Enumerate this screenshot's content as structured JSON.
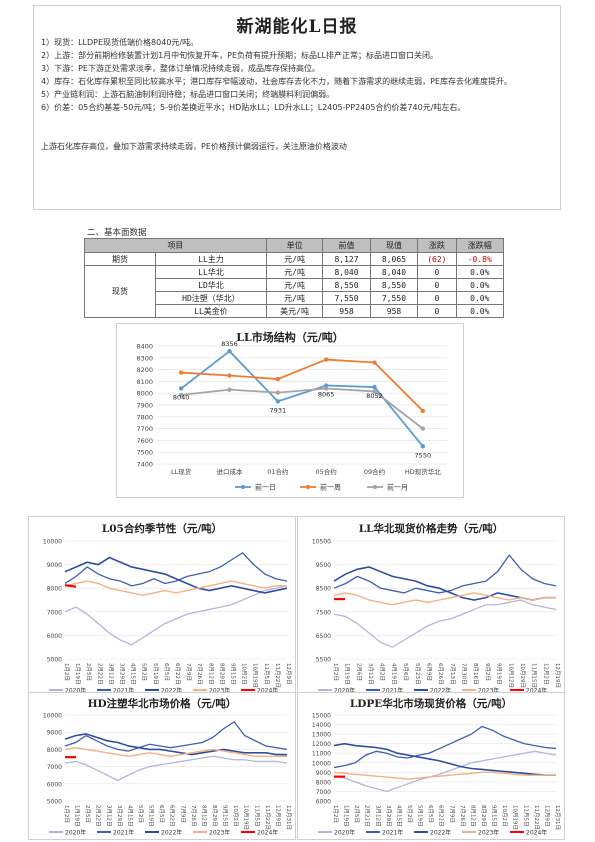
{
  "report": {
    "title": "新湖能化L日报",
    "lines": [
      "1）现货：LLDPE现货低端价格8040元/吨。",
      "2）上游：部分前期检修装置计划1月中旬恢复开车，PE负荷有提升预期；标品LL排产正常；标品进口窗口关闭。",
      "3）下游：PE下游正处需求淡季，整体订单情况持续走弱，成品库存保持高位。",
      "4）库存：石化库存累积至同比较高水平；港口库存窄幅波动，社会库存去化不力，随着下游需求的继续走弱，PE库存去化难度提升。",
      "5）产业链利润：上游石脑油制利润持稳；标品进口窗口关闭；终端膜料利润偏弱。",
      "6）价差：05合约基差-50元/吨；5-9价差换近平水；HD贴水LL；LD升水LL；L2405-PP2405合约价差740元/吨左右。"
    ],
    "conclusion": "上游石化库存高位，叠加下游需求持续走弱，PE价格预计偏弱运行，关注原油价格波动"
  },
  "section": {
    "title": "二、基本面数据"
  },
  "table": {
    "headers": [
      "项目",
      "单位",
      "前值",
      "现值",
      "涨跌",
      "涨跌幅"
    ],
    "group_futures": "期货",
    "group_spot": "现货",
    "rows": [
      {
        "item": "LL主力",
        "unit": "元/吨",
        "prev": "8,127",
        "curr": "8,065",
        "chg": "(62)",
        "pct": "-0.8%"
      },
      {
        "item": "LL华北",
        "unit": "元/吨",
        "prev": "8,040",
        "curr": "8,040",
        "chg": "0",
        "pct": "0.0%"
      },
      {
        "item": "LD华北",
        "unit": "元/吨",
        "prev": "8,550",
        "curr": "8,550",
        "chg": "0",
        "pct": "0.0%"
      },
      {
        "item": "HD注塑（华北）",
        "unit": "元/吨",
        "prev": "7,550",
        "curr": "7,550",
        "chg": "0",
        "pct": "0.0%"
      },
      {
        "item": "LL美金价",
        "unit": "美元/吨",
        "prev": "958",
        "curr": "958",
        "chg": "0",
        "pct": "0.0%"
      }
    ]
  },
  "colors": {
    "blue": "#5b9bd5",
    "orange": "#ed7d31",
    "gray": "#a5a5a5",
    "lav": "#b4b4dc",
    "navy": "#3f5fb0",
    "dark": "#2e4fa0",
    "peach": "#f4b183",
    "red": "#ff0000"
  },
  "chart_data": [
    {
      "type": "line",
      "title": "LL市场结构（元/吨）",
      "categories": [
        "LL现货",
        "进口成本",
        "01合约",
        "05合约",
        "09合约",
        "HD现货华北"
      ],
      "ylim": [
        7400,
        8400
      ],
      "yticks": [
        "8400",
        "8300",
        "8200",
        "8100",
        "8000",
        "7900",
        "7800",
        "7700",
        "7600",
        "7500",
        "7400"
      ],
      "series": [
        {
          "name": "前一日",
          "values": [
            8040,
            8356,
            7931,
            8065,
            8052,
            7550
          ]
        },
        {
          "name": "前一周",
          "values": [
            8175,
            8150,
            8120,
            8285,
            8260,
            7850
          ]
        },
        {
          "name": "前一月",
          "values": [
            7985,
            8030,
            8005,
            8040,
            8015,
            7700
          ]
        }
      ],
      "data_labels": [
        {
          "text": "8040",
          "series": 0,
          "index": 0
        },
        {
          "text": "8356",
          "series": 0,
          "index": 1
        },
        {
          "text": "7931",
          "series": 0,
          "index": 2
        },
        {
          "text": "8065",
          "series": 0,
          "index": 3
        },
        {
          "text": "8052",
          "series": 0,
          "index": 4
        },
        {
          "text": "7550",
          "series": 0,
          "index": 5
        }
      ]
    },
    {
      "type": "line",
      "title": "L05合约季节性（元/吨）",
      "ylim": [
        5000,
        10000
      ],
      "yticks": [
        "10000",
        "9000",
        "8000",
        "7000",
        "6000",
        "5000"
      ],
      "xticks": [
        "1月2日",
        "1月19日",
        "2月5日",
        "2月22日",
        "3月12日",
        "3月29日",
        "4月15日",
        "5月2日",
        "5月19日",
        "6月5日",
        "6月22日",
        "7月9日",
        "7月26日",
        "8月12日",
        "8月29日",
        "9月15日",
        "10月2日",
        "10月19日",
        "11月5日",
        "11月22日",
        "12月9日"
      ],
      "legend": [
        "2020年",
        "2021年",
        "2022年",
        "2023年",
        "2024年"
      ],
      "series": [
        {
          "name": "2020年",
          "values": [
            7000,
            7200,
            6900,
            6500,
            6100,
            5800,
            5600,
            5900,
            6200,
            6500,
            6700,
            6900,
            7000,
            7100,
            7200,
            7300,
            7500,
            7700,
            7900,
            8000,
            8100
          ]
        },
        {
          "name": "2021年",
          "values": [
            8200,
            8500,
            8900,
            8600,
            8400,
            8300,
            8100,
            8200,
            8400,
            8200,
            8300,
            8500,
            8600,
            8700,
            8900,
            9200,
            9500,
            9000,
            8600,
            8400,
            8300
          ]
        },
        {
          "name": "2022年",
          "values": [
            8700,
            8900,
            9100,
            9000,
            9300,
            9100,
            8900,
            8800,
            8700,
            8600,
            8400,
            8200,
            8000,
            7900,
            8000,
            8100,
            8000,
            7900,
            7800,
            7900,
            8000
          ]
        },
        {
          "name": "2023年",
          "values": [
            8100,
            8200,
            8300,
            8200,
            8000,
            7900,
            7800,
            7700,
            7800,
            7900,
            7800,
            7900,
            8000,
            8100,
            8200,
            8300,
            8200,
            8100,
            8000,
            8100,
            8100
          ]
        },
        {
          "name": "2024年",
          "values": [
            8127,
            8065
          ]
        }
      ]
    },
    {
      "type": "line",
      "title": "LL华北现货价格走势（元/吨）",
      "ylim": [
        5500,
        10500
      ],
      "yticks": [
        "10500",
        "9500",
        "8500",
        "7500",
        "6500",
        "5500"
      ],
      "xticks": [
        "1月2日",
        "1月19日",
        "2月6日",
        "3月12日",
        "4月2日",
        "4月19日",
        "5月6日",
        "5月23日",
        "6月9日",
        "6月26日",
        "7月13日",
        "7月30日",
        "8月16日",
        "9月2日",
        "9月19日",
        "10月12日",
        "10月29日",
        "11月15日",
        "12月2日",
        "12月19日"
      ],
      "legend": [
        "2020年",
        "2021年",
        "2022年",
        "2023年",
        "2024年"
      ],
      "series": [
        {
          "name": "2020年",
          "values": [
            7400,
            7300,
            7000,
            6600,
            6200,
            6000,
            6300,
            6600,
            6900,
            7100,
            7200,
            7400,
            7600,
            7800,
            7800,
            7900,
            8000,
            7800,
            7700,
            7600
          ]
        },
        {
          "name": "2021年",
          "values": [
            8500,
            8700,
            9000,
            8800,
            8500,
            8400,
            8300,
            8500,
            8400,
            8300,
            8400,
            8600,
            8700,
            8800,
            9200,
            9900,
            9300,
            8900,
            8700,
            8600
          ]
        },
        {
          "name": "2022年",
          "values": [
            8800,
            9100,
            9300,
            9400,
            9200,
            9000,
            8900,
            8800,
            8600,
            8500,
            8300,
            8100,
            8000,
            8100,
            8300,
            8200,
            8100,
            8000,
            8100,
            8100
          ]
        },
        {
          "name": "2023年",
          "values": [
            8200,
            8300,
            8200,
            8000,
            7900,
            7800,
            7900,
            8000,
            7900,
            8000,
            8100,
            8200,
            8300,
            8200,
            8100,
            8000,
            8100,
            8000,
            8100,
            8100
          ]
        },
        {
          "name": "2024年",
          "values": [
            8040,
            8040
          ]
        }
      ]
    },
    {
      "type": "line",
      "title": "HD注塑华北市场价格（元/吨）",
      "ylim": [
        5000,
        10000
      ],
      "yticks": [
        "10000",
        "9000",
        "8000",
        "7000",
        "6000",
        "5000"
      ],
      "xticks": [
        "1月2日",
        "1月19日",
        "2月5日",
        "2月22日",
        "3月12日",
        "3月29日",
        "4月15日",
        "5月2日",
        "5月19日",
        "6月5日",
        "6月22日",
        "7月9日",
        "7月26日",
        "8月12日",
        "8月29日",
        "9月15日",
        "10月2日",
        "10月19日",
        "11月5日",
        "11月22日",
        "12月9日",
        "12月31日"
      ],
      "legend": [
        "2020年",
        "2021年",
        "2022年",
        "2023年",
        "2024年"
      ],
      "series": [
        {
          "name": "2020年",
          "values": [
            7200,
            7300,
            7100,
            6800,
            6500,
            6200,
            6500,
            6800,
            7000,
            7100,
            7200,
            7300,
            7400,
            7500,
            7600,
            7500,
            7400,
            7400,
            7300,
            7300,
            7300,
            7200
          ]
        },
        {
          "name": "2021年",
          "values": [
            8200,
            8400,
            8800,
            8500,
            8200,
            8000,
            7900,
            8100,
            8300,
            8200,
            8100,
            8200,
            8300,
            8400,
            8700,
            9200,
            9600,
            8800,
            8500,
            8200,
            8100,
            8000
          ]
        },
        {
          "name": "2022年",
          "values": [
            8600,
            8800,
            8900,
            8700,
            8500,
            8400,
            8200,
            8100,
            8000,
            8000,
            7900,
            7800,
            7700,
            7800,
            7900,
            8000,
            7900,
            7800,
            7800,
            7800,
            7700,
            7700
          ]
        },
        {
          "name": "2023年",
          "values": [
            8000,
            8100,
            8000,
            7900,
            7800,
            7700,
            7600,
            7700,
            7800,
            7700,
            7600,
            7700,
            7800,
            7900,
            8000,
            7900,
            7800,
            7700,
            7600,
            7600,
            7600,
            7600
          ]
        },
        {
          "name": "2024年",
          "values": [
            7550,
            7550
          ]
        }
      ]
    },
    {
      "type": "line",
      "title": "LDPE华北市场现货价格（元/吨）",
      "ylim": [
        6000,
        15000
      ],
      "yticks": [
        "15000",
        "14000",
        "13000",
        "12000",
        "11000",
        "10000",
        "9000",
        "8000",
        "7000",
        "6000"
      ],
      "xticks": [
        "1月2日",
        "1月19日",
        "2月5日",
        "2月22日",
        "3月12日",
        "3月29日",
        "4月15日",
        "5月2日",
        "5月19日",
        "6月5日",
        "6月22日",
        "7月9日",
        "7月26日",
        "8月12日",
        "8月29日",
        "9月15日",
        "10月2日",
        "10月19日",
        "11月5日",
        "11月22日",
        "12月9日",
        "12月31日"
      ],
      "legend": [
        "2020年",
        "2021年",
        "2022年",
        "2023年",
        "2024年"
      ],
      "series": [
        {
          "name": "2020年",
          "values": [
            8600,
            8400,
            8000,
            7600,
            7300,
            7000,
            7400,
            7800,
            8200,
            8500,
            8800,
            9200,
            9600,
            10000,
            10200,
            10400,
            10600,
            10800,
            11000,
            11200,
            11000,
            10800
          ]
        },
        {
          "name": "2021年",
          "values": [
            9500,
            9700,
            10000,
            10800,
            11200,
            11000,
            10600,
            10500,
            10800,
            11000,
            11500,
            12000,
            12500,
            13000,
            13800,
            13400,
            12800,
            12400,
            12000,
            11800,
            11600,
            11500
          ]
        },
        {
          "name": "2022年",
          "values": [
            11800,
            12000,
            11800,
            11700,
            11600,
            11400,
            11000,
            10800,
            10600,
            10400,
            10200,
            9900,
            9600,
            9400,
            9300,
            9200,
            9100,
            9000,
            8900,
            8800,
            8700,
            8700
          ]
        },
        {
          "name": "2023年",
          "values": [
            9000,
            8900,
            8800,
            8700,
            8600,
            8500,
            8400,
            8300,
            8400,
            8500,
            8600,
            8700,
            8800,
            8900,
            9000,
            9000,
            8900,
            8800,
            8700,
            8700,
            8700,
            8700
          ]
        },
        {
          "name": "2024年",
          "values": [
            8550,
            8550
          ]
        }
      ]
    }
  ]
}
